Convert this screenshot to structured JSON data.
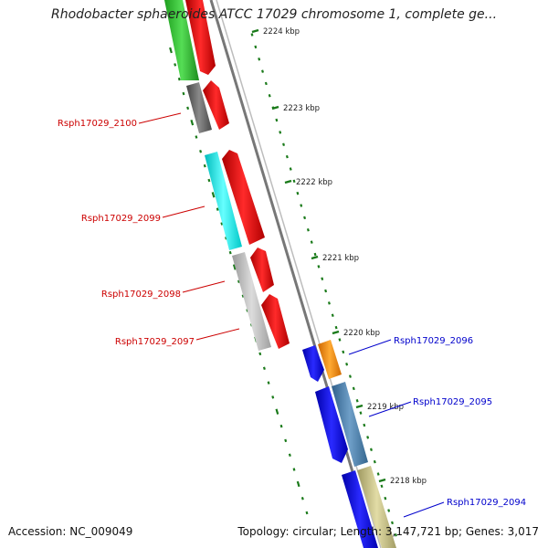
{
  "title": "Rhodobacter sphaeroides ATCC 17029 chromosome 1, complete ge...",
  "footer": {
    "accession": "Accession: NC_009049",
    "summary": "Topology: circular; Length: 3,147,721 bp; Genes: 3,017"
  },
  "kbp_ticks": [
    "2224 kbp",
    "2223 kbp",
    "2222 kbp",
    "2221 kbp",
    "2220 kbp",
    "2219 kbp",
    "2218 kbp"
  ],
  "gene_labels": [
    {
      "text": "Rsph17029_2100",
      "strand": "minus",
      "color": "#cc0000"
    },
    {
      "text": "Rsph17029_2099",
      "strand": "minus",
      "color": "#cc0000"
    },
    {
      "text": "Rsph17029_2098",
      "strand": "minus",
      "color": "#cc0000"
    },
    {
      "text": "Rsph17029_2097",
      "strand": "minus",
      "color": "#cc0000"
    },
    {
      "text": "Rsph17029_2096",
      "strand": "plus",
      "color": "#0000cc"
    },
    {
      "text": "Rsph17029_2095",
      "strand": "plus",
      "color": "#0000cc"
    },
    {
      "text": "Rsph17029_2094",
      "strand": "plus",
      "color": "#0000cc"
    }
  ],
  "colors": {
    "minus_strand_cds": "#ee0000",
    "plus_strand_cds": "#0000ee",
    "backbone": "#888888",
    "tick": "#1a7a1a"
  }
}
